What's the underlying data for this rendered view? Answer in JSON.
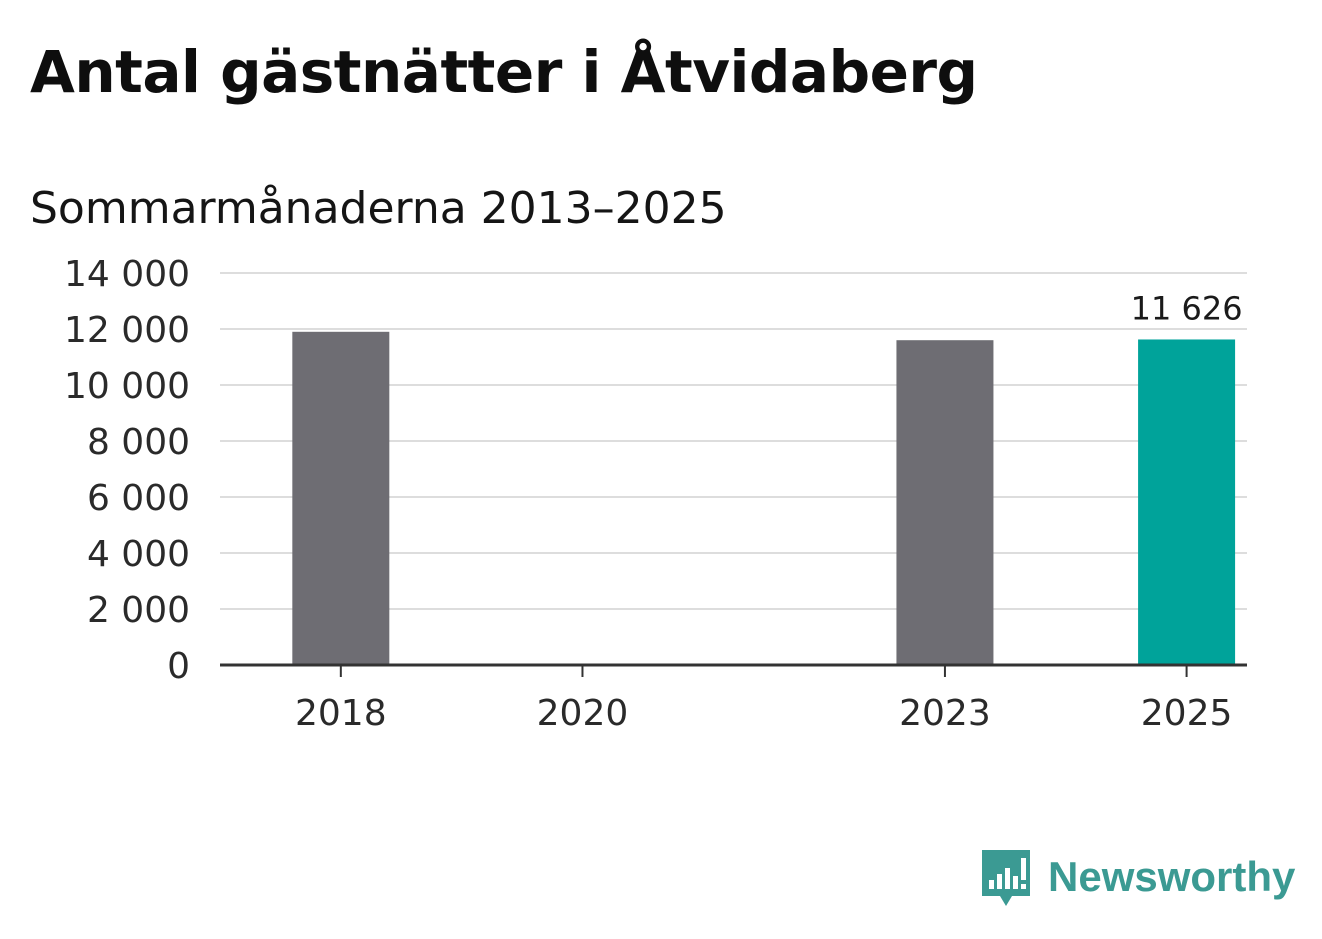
{
  "title": "Antal gästnätter i Åtvidaberg",
  "subtitle": "Sommarmånaderna 2013–2025",
  "brand": {
    "name": "Newsworthy",
    "color": "#3b9a93"
  },
  "colors": {
    "default_bar": "#6e6d73",
    "highlight_bar": "#00a39a",
    "grid": "#dddddd",
    "axis": "#333333"
  },
  "chart_data": {
    "type": "bar",
    "title": "Antal gästnätter i Åtvidaberg",
    "subtitle": "Sommarmånaderna 2013–2025",
    "x": [
      2018,
      2020,
      2023,
      2025
    ],
    "values": [
      11900,
      null,
      11600,
      11626
    ],
    "highlight": 2025,
    "data_labels": [
      {
        "x": 2025,
        "text": "11 626"
      }
    ],
    "xlim": [
      2017,
      2025.5
    ],
    "ylim": [
      0,
      14000
    ],
    "yticks": [
      0,
      2000,
      4000,
      6000,
      8000,
      10000,
      12000,
      14000
    ],
    "ytick_labels": [
      "0",
      "2 000",
      "4 000",
      "6 000",
      "8 000",
      "10 000",
      "12 000",
      "14 000"
    ],
    "xticks": [
      2018,
      2020,
      2023,
      2025
    ],
    "xtick_labels": [
      "2018",
      "2020",
      "2023",
      "2025"
    ],
    "grid": true,
    "xlabel": "",
    "ylabel": ""
  }
}
